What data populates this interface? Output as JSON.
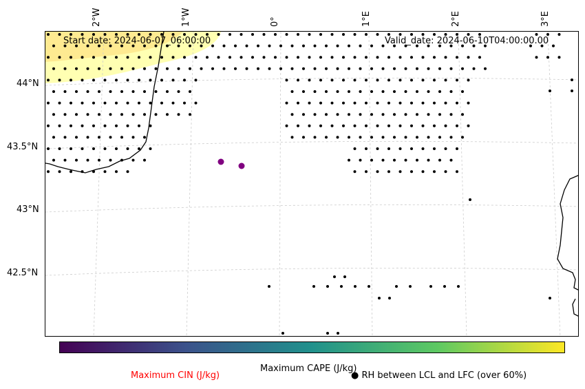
{
  "header": {
    "start_date": "Start date: 2024-06-07_06:00:00",
    "valid_date": "Valid_date: 2024-06-10T04:00:00.00"
  },
  "axes": {
    "lon_labels": [
      "2°W",
      "1°W",
      "0°",
      "1°E",
      "2°E",
      "3°E"
    ],
    "lat_labels": [
      "44°N",
      "43.5°N",
      "43°N",
      "42.5°N"
    ]
  },
  "colorbar": {
    "label": "Maximum CAPE (J/kg)",
    "colormap": [
      "#440154",
      "#3b528b",
      "#21918c",
      "#5ec962",
      "#fde725"
    ]
  },
  "legend": {
    "cin_label": "Maximum CIN (J/kg)",
    "cin_color": "#ff0000",
    "rh_label": "RH between LCL and LFC (over 60%)",
    "rh_marker": "●"
  },
  "colors": {
    "cape_low": "#ffffb2",
    "cape_mid": "#fed976",
    "cin_points": "#800080",
    "grid": "#cccccc"
  }
}
